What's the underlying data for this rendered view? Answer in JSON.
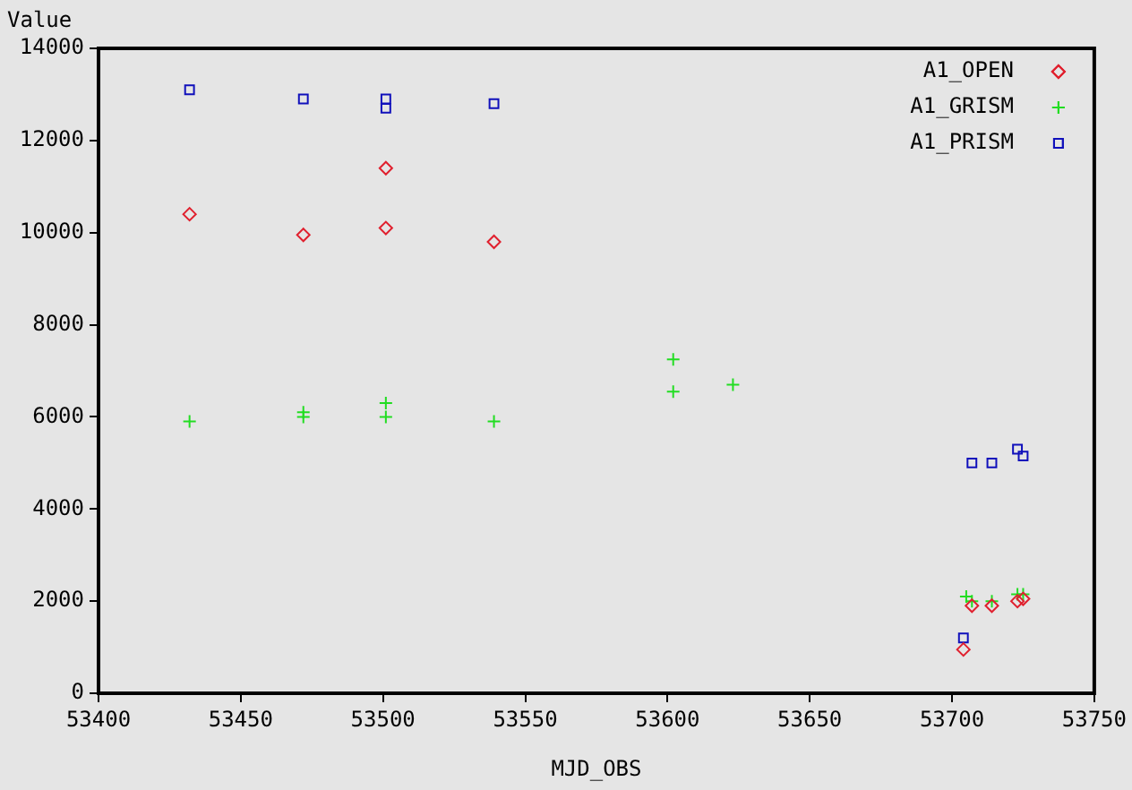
{
  "chart_data": {
    "type": "scatter",
    "xlabel": "MJD_OBS",
    "ylabel": "Value",
    "xlim": [
      53400,
      53750
    ],
    "xticks": [
      53400,
      53450,
      53500,
      53550,
      53600,
      53650,
      53700,
      53750
    ],
    "ylim": [
      0,
      14000
    ],
    "yticks": [
      0,
      2000,
      4000,
      6000,
      8000,
      10000,
      12000,
      14000
    ],
    "grid": false,
    "legend": "top right",
    "series": [
      {
        "name": "A1_OPEN",
        "color": "#e0202e",
        "marker": "diamond",
        "x": [
          53432,
          53472,
          53501,
          53501,
          53539,
          53704,
          53707,
          53714,
          53723,
          53725
        ],
        "values": [
          10400,
          9950,
          11400,
          10100,
          9800,
          950,
          1900,
          1900,
          2000,
          2050
        ]
      },
      {
        "name": "A1_GRISM",
        "color": "#22dd22",
        "marker": "cross",
        "x": [
          53432,
          53472,
          53472,
          53501,
          53501,
          53539,
          53602,
          53602,
          53623,
          53705,
          53707,
          53714,
          53723,
          53725
        ],
        "values": [
          5900,
          6100,
          6000,
          6300,
          6000,
          5900,
          7250,
          6550,
          6700,
          2100,
          2000,
          2000,
          2150,
          2150
        ]
      },
      {
        "name": "A1_PRISM",
        "color": "#1010bb",
        "marker": "square",
        "x": [
          53432,
          53472,
          53501,
          53501,
          53539,
          53704,
          53707,
          53714,
          53723,
          53725
        ],
        "values": [
          13100,
          12900,
          12900,
          12700,
          12800,
          1200,
          5000,
          5000,
          5300,
          5150
        ]
      }
    ]
  }
}
